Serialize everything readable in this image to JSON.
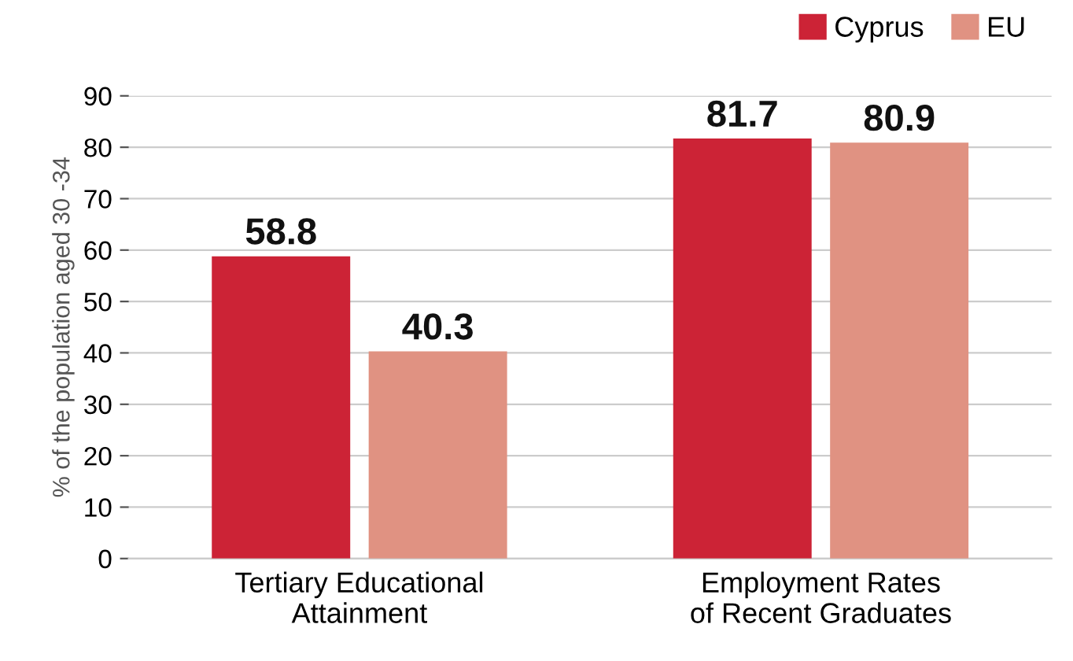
{
  "chart_data": {
    "type": "bar",
    "categories": [
      "Tertiary Educational\nAttainment",
      "Employment Rates\nof Recent Graduates"
    ],
    "series": [
      {
        "name": "Cyprus",
        "color": "#cc2336",
        "values": [
          58.8,
          81.7
        ]
      },
      {
        "name": "EU",
        "color": "#e09282",
        "values": [
          40.3,
          80.9
        ]
      }
    ],
    "ylabel": "% of the population aged 30 -34",
    "ylim": [
      0,
      90
    ],
    "yticks": [
      0,
      10,
      20,
      30,
      40,
      50,
      60,
      70,
      80,
      90
    ],
    "grid": "y",
    "legend": "top right",
    "data_labels": true
  }
}
